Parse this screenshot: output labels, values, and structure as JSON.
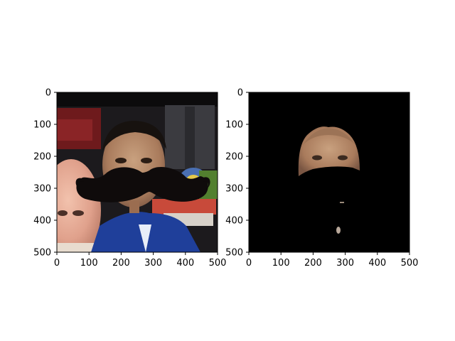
{
  "figure": {
    "background": "#ffffff"
  },
  "chart_data": [
    {
      "type": "image",
      "panel": "left",
      "content": "photo with mustache overlay",
      "xlim": [
        0,
        500
      ],
      "ylim": [
        500,
        0
      ],
      "xticks": [
        0,
        100,
        200,
        300,
        400,
        500
      ],
      "yticks": [
        0,
        100,
        200,
        300,
        400,
        500
      ],
      "xtick_labels": [
        "0",
        "100",
        "200",
        "300",
        "400",
        "500"
      ],
      "ytick_labels": [
        "0",
        "100",
        "200",
        "300",
        "400",
        "500"
      ],
      "title": "",
      "xlabel": "",
      "ylabel": ""
    },
    {
      "type": "image",
      "panel": "right",
      "content": "masked face region on black background",
      "xlim": [
        0,
        500
      ],
      "ylim": [
        500,
        0
      ],
      "xticks": [
        0,
        100,
        200,
        300,
        400,
        500
      ],
      "yticks": [
        0,
        100,
        200,
        300,
        400,
        500
      ],
      "xtick_labels": [
        "0",
        "100",
        "200",
        "300",
        "400",
        "500"
      ],
      "ytick_labels": [
        "0",
        "100",
        "200",
        "300",
        "400",
        "500"
      ],
      "title": "",
      "xlabel": "",
      "ylabel": ""
    }
  ],
  "colors": {
    "mustache": "#0f0b0b",
    "mask_background": "#000000",
    "skin": "#b48a6c",
    "shirt": "#1f3f9a"
  }
}
